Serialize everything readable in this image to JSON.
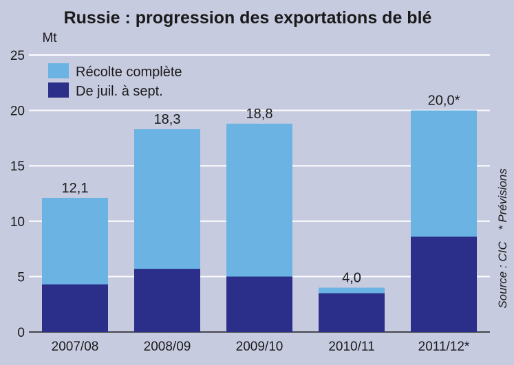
{
  "chart_data": {
    "type": "bar",
    "title": "Russie : progression des exportations de blé",
    "ylabel": "Mt",
    "xlabel": "",
    "ylim": [
      0,
      25
    ],
    "yticks": [
      0,
      5,
      10,
      15,
      20,
      25
    ],
    "grid": true,
    "stacked": false,
    "categories": [
      "2007/08",
      "2008/09",
      "2009/10",
      "2010/11",
      "2011/12*"
    ],
    "series": [
      {
        "name": "Récolte complète",
        "values": [
          12.1,
          18.3,
          18.8,
          4.0,
          20.0
        ]
      },
      {
        "name": "De juil. à sept.",
        "values": [
          4.3,
          5.7,
          5.0,
          3.5,
          8.6
        ]
      }
    ],
    "value_labels": [
      "12,1",
      "18,3",
      "18,8",
      "4,0",
      "20,0*"
    ],
    "legend_position": "top-left",
    "colors": {
      "background": "#c7cbe0",
      "grid": "#ffffff",
      "full_harvest": "#6ab3e2",
      "jul_sep": "#2b2f8a",
      "text": "#1a1a1a"
    },
    "side_notes": {
      "forecast": "* Prévisions",
      "source": "Source : CIC"
    }
  }
}
